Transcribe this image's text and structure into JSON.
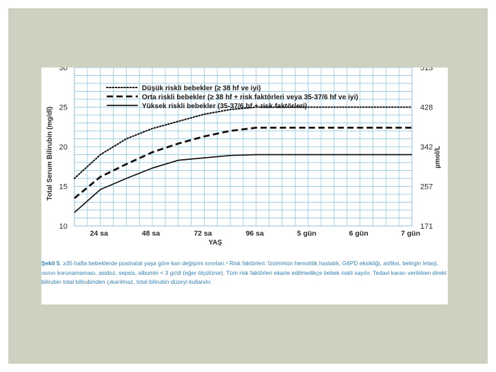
{
  "chart_data": {
    "type": "line",
    "xlabel": "YAŞ",
    "ylabel": "Total Serum Bilirubin (mg/dl)",
    "y2label": "µmol/L",
    "ylim": [
      10,
      30
    ],
    "yticks": [
      10,
      15,
      20,
      25,
      30
    ],
    "y2ticks": [
      "171",
      "257",
      "342",
      "428",
      "513"
    ],
    "xlim_hours": [
      12,
      168
    ],
    "xticks": [
      {
        "h": 24,
        "label": "24 sa"
      },
      {
        "h": 48,
        "label": "48 sa"
      },
      {
        "h": 72,
        "label": "72 sa"
      },
      {
        "h": 96,
        "label": "96 sa"
      },
      {
        "h": 120,
        "label": "5 gün"
      },
      {
        "h": 144,
        "label": "6 gün"
      },
      {
        "h": 168,
        "label": "7 gün"
      }
    ],
    "grid": true,
    "legend_position": "top",
    "series": [
      {
        "name": "Düşük riskli bebekler (≥ 38 hf ve iyi)",
        "style": "dotted",
        "x": [
          12,
          24,
          36,
          48,
          60,
          72,
          84,
          96,
          120,
          144,
          168
        ],
        "y": [
          16.0,
          19.0,
          21.0,
          22.3,
          23.2,
          24.1,
          24.7,
          25.0,
          25.0,
          25.0,
          25.0
        ]
      },
      {
        "name": "Orta riskli bebekler (≥ 38 hf  + risk faktörleri veya 35-37/6 hf ve iyi)",
        "style": "dashed",
        "x": [
          12,
          24,
          36,
          48,
          60,
          72,
          84,
          96,
          120,
          144,
          168
        ],
        "y": [
          13.5,
          16.2,
          17.8,
          19.3,
          20.4,
          21.3,
          22.0,
          22.4,
          22.4,
          22.4,
          22.4
        ]
      },
      {
        "name": "Yüksek riskli bebekler (35-37/6 hf + risk faktörleri)",
        "style": "solid",
        "x": [
          12,
          24,
          36,
          48,
          60,
          72,
          84,
          96,
          120,
          144,
          168
        ],
        "y": [
          11.7,
          14.6,
          16.0,
          17.3,
          18.3,
          18.6,
          18.9,
          19.0,
          19.0,
          19.0,
          19.0
        ]
      }
    ]
  },
  "caption": {
    "label": "Şekil 5",
    "text": ". ≥35 hafta bebeklerde postnatal yaşa göre kan değişimi sınırları.¹ Risk faktörleri: İzoimmün hemolitik hastalık, G6PD eksikliği, asfiksi, belirgin letarji, ısının korunamaması, asidoz, sepsis, albumin < 3 gr/dl (eğer ölçülürse). Tüm risk faktörleri ekarte edilmedikçe bebek riskli sayılır. Tedavi kararı verilirken direkt bilirubin total bilirubinden çıkarılmaz, total bilirubin düzeyi kullanılır."
  },
  "colors": {
    "grid": "#9ccbe6",
    "line": "#111111",
    "caption": "#2f7fb8",
    "background": "#cdd2c0"
  }
}
